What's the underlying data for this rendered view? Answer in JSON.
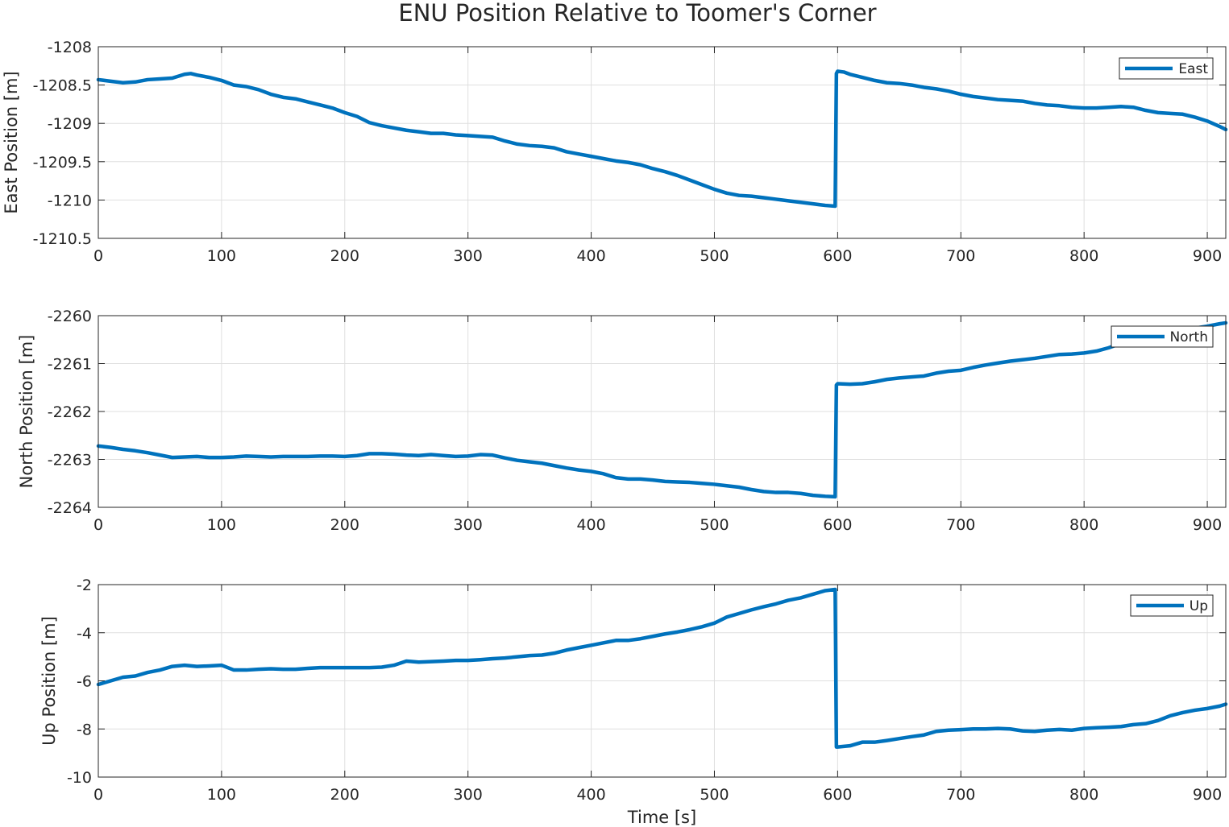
{
  "figure": {
    "title": "ENU Position Relative to Toomer's Corner",
    "background": "#ffffff",
    "line_color": "#0072bd",
    "grid_color": "#dfdfdf",
    "axis_color": "#262626"
  },
  "chart_data": [
    {
      "type": "line",
      "title": "ENU Position Relative to Toomer's Corner",
      "xlabel": "",
      "ylabel": "East Position [m]",
      "xlim": [
        0,
        915
      ],
      "ylim": [
        -1210.5,
        -1208
      ],
      "xticks": [
        0,
        100,
        200,
        300,
        400,
        500,
        600,
        700,
        800,
        900
      ],
      "xtick_labels": [
        "0",
        "100",
        "200",
        "300",
        "400",
        "500",
        "600",
        "700",
        "800",
        "900"
      ],
      "yticks": [
        -1210.5,
        -1210,
        -1209.5,
        -1209,
        -1208.5,
        -1208
      ],
      "ytick_labels": [
        "-1210.5",
        "-1210",
        "-1209.5",
        "-1209",
        "-1208.5",
        "-1208"
      ],
      "grid": true,
      "legend_position": "top-right",
      "series": [
        {
          "name": "East",
          "x": [
            0,
            10,
            20,
            30,
            40,
            50,
            60,
            70,
            75,
            80,
            90,
            100,
            110,
            120,
            130,
            140,
            150,
            160,
            170,
            180,
            190,
            200,
            210,
            220,
            230,
            240,
            250,
            260,
            270,
            280,
            290,
            300,
            310,
            320,
            330,
            340,
            350,
            360,
            370,
            380,
            390,
            400,
            410,
            420,
            430,
            440,
            450,
            460,
            470,
            480,
            490,
            500,
            510,
            520,
            530,
            540,
            550,
            560,
            570,
            580,
            590,
            598,
            599,
            600,
            605,
            610,
            620,
            630,
            640,
            650,
            660,
            670,
            680,
            690,
            700,
            710,
            720,
            730,
            740,
            750,
            760,
            770,
            780,
            790,
            800,
            810,
            820,
            830,
            840,
            850,
            860,
            870,
            880,
            890,
            900,
            910,
            915
          ],
          "values": [
            -1208.43,
            -1208.45,
            -1208.47,
            -1208.46,
            -1208.43,
            -1208.42,
            -1208.41,
            -1208.36,
            -1208.35,
            -1208.37,
            -1208.4,
            -1208.44,
            -1208.5,
            -1208.52,
            -1208.56,
            -1208.62,
            -1208.66,
            -1208.68,
            -1208.72,
            -1208.76,
            -1208.8,
            -1208.86,
            -1208.91,
            -1208.99,
            -1209.03,
            -1209.06,
            -1209.09,
            -1209.11,
            -1209.13,
            -1209.13,
            -1209.15,
            -1209.16,
            -1209.17,
            -1209.18,
            -1209.23,
            -1209.27,
            -1209.29,
            -1209.3,
            -1209.32,
            -1209.37,
            -1209.4,
            -1209.43,
            -1209.46,
            -1209.49,
            -1209.51,
            -1209.54,
            -1209.59,
            -1209.63,
            -1209.68,
            -1209.74,
            -1209.8,
            -1209.86,
            -1209.91,
            -1209.94,
            -1209.95,
            -1209.97,
            -1209.99,
            -1210.01,
            -1210.03,
            -1210.05,
            -1210.07,
            -1210.08,
            -1208.35,
            -1208.32,
            -1208.33,
            -1208.36,
            -1208.4,
            -1208.44,
            -1208.47,
            -1208.48,
            -1208.5,
            -1208.53,
            -1208.55,
            -1208.58,
            -1208.62,
            -1208.65,
            -1208.67,
            -1208.69,
            -1208.7,
            -1208.71,
            -1208.74,
            -1208.76,
            -1208.77,
            -1208.79,
            -1208.8,
            -1208.8,
            -1208.79,
            -1208.78,
            -1208.79,
            -1208.83,
            -1208.86,
            -1208.87,
            -1208.88,
            -1208.92,
            -1208.97,
            -1209.04,
            -1209.08
          ]
        }
      ]
    },
    {
      "type": "line",
      "xlabel": "",
      "ylabel": "North Position [m]",
      "xlim": [
        0,
        915
      ],
      "ylim": [
        -2264,
        -2260
      ],
      "xticks": [
        0,
        100,
        200,
        300,
        400,
        500,
        600,
        700,
        800,
        900
      ],
      "xtick_labels": [
        "0",
        "100",
        "200",
        "300",
        "400",
        "500",
        "600",
        "700",
        "800",
        "900"
      ],
      "yticks": [
        -2264,
        -2263,
        -2262,
        -2261,
        -2260
      ],
      "ytick_labels": [
        "-2264",
        "-2263",
        "-2262",
        "-2261",
        "-2260"
      ],
      "grid": true,
      "legend_position": "top-right",
      "series": [
        {
          "name": "North",
          "x": [
            0,
            10,
            20,
            30,
            40,
            50,
            60,
            70,
            80,
            90,
            100,
            110,
            120,
            130,
            140,
            150,
            160,
            170,
            180,
            190,
            200,
            210,
            220,
            230,
            240,
            250,
            260,
            270,
            280,
            290,
            300,
            310,
            320,
            330,
            340,
            350,
            360,
            370,
            380,
            390,
            400,
            410,
            420,
            430,
            440,
            450,
            460,
            470,
            480,
            490,
            500,
            510,
            520,
            530,
            540,
            550,
            560,
            570,
            580,
            590,
            598,
            599,
            600,
            610,
            620,
            630,
            640,
            650,
            660,
            670,
            680,
            690,
            700,
            710,
            720,
            730,
            740,
            750,
            760,
            770,
            780,
            790,
            800,
            810,
            820,
            830,
            840,
            850,
            860,
            870,
            880,
            890,
            900,
            910,
            915
          ],
          "values": [
            -2262.72,
            -2262.75,
            -2262.79,
            -2262.82,
            -2262.86,
            -2262.91,
            -2262.96,
            -2262.95,
            -2262.94,
            -2262.96,
            -2262.96,
            -2262.95,
            -2262.93,
            -2262.94,
            -2262.95,
            -2262.94,
            -2262.94,
            -2262.94,
            -2262.93,
            -2262.93,
            -2262.94,
            -2262.92,
            -2262.88,
            -2262.88,
            -2262.89,
            -2262.91,
            -2262.92,
            -2262.9,
            -2262.92,
            -2262.94,
            -2262.93,
            -2262.9,
            -2262.91,
            -2262.97,
            -2263.02,
            -2263.05,
            -2263.08,
            -2263.13,
            -2263.18,
            -2263.22,
            -2263.25,
            -2263.3,
            -2263.38,
            -2263.41,
            -2263.41,
            -2263.43,
            -2263.46,
            -2263.47,
            -2263.48,
            -2263.5,
            -2263.52,
            -2263.55,
            -2263.58,
            -2263.63,
            -2263.67,
            -2263.69,
            -2263.69,
            -2263.71,
            -2263.75,
            -2263.77,
            -2263.78,
            -2261.45,
            -2261.42,
            -2261.43,
            -2261.42,
            -2261.38,
            -2261.33,
            -2261.3,
            -2261.28,
            -2261.26,
            -2261.2,
            -2261.16,
            -2261.14,
            -2261.08,
            -2261.03,
            -2260.99,
            -2260.95,
            -2260.92,
            -2260.89,
            -2260.85,
            -2260.81,
            -2260.8,
            -2260.78,
            -2260.74,
            -2260.67,
            -2260.58,
            -2260.52,
            -2260.47,
            -2260.43,
            -2260.37,
            -2260.32,
            -2260.26,
            -2260.22,
            -2260.17,
            -2260.15
          ]
        }
      ]
    },
    {
      "type": "line",
      "xlabel": "Time [s]",
      "ylabel": "Up Position [m]",
      "xlim": [
        0,
        915
      ],
      "ylim": [
        -10,
        -2
      ],
      "xticks": [
        0,
        100,
        200,
        300,
        400,
        500,
        600,
        700,
        800,
        900
      ],
      "xtick_labels": [
        "0",
        "100",
        "200",
        "300",
        "400",
        "500",
        "600",
        "700",
        "800",
        "900"
      ],
      "yticks": [
        -10,
        -8,
        -6,
        -4,
        -2
      ],
      "ytick_labels": [
        "-10",
        "-8",
        "-6",
        "-4",
        "-2"
      ],
      "grid": true,
      "legend_position": "top-right",
      "series": [
        {
          "name": "Up",
          "x": [
            0,
            10,
            20,
            30,
            40,
            50,
            60,
            70,
            80,
            90,
            100,
            110,
            120,
            130,
            140,
            150,
            160,
            170,
            180,
            190,
            200,
            210,
            220,
            230,
            240,
            250,
            260,
            270,
            280,
            290,
            300,
            310,
            320,
            330,
            340,
            350,
            360,
            370,
            380,
            390,
            400,
            410,
            420,
            430,
            440,
            450,
            460,
            470,
            480,
            490,
            500,
            510,
            520,
            530,
            540,
            550,
            560,
            570,
            580,
            590,
            598,
            599,
            600,
            610,
            620,
            630,
            640,
            650,
            660,
            670,
            680,
            690,
            700,
            710,
            720,
            730,
            740,
            750,
            760,
            770,
            780,
            790,
            800,
            810,
            820,
            830,
            840,
            850,
            860,
            870,
            880,
            890,
            900,
            910,
            915
          ],
          "values": [
            -6.15,
            -6.0,
            -5.85,
            -5.8,
            -5.65,
            -5.55,
            -5.4,
            -5.35,
            -5.4,
            -5.38,
            -5.35,
            -5.55,
            -5.55,
            -5.52,
            -5.5,
            -5.52,
            -5.52,
            -5.48,
            -5.45,
            -5.45,
            -5.45,
            -5.45,
            -5.45,
            -5.43,
            -5.35,
            -5.18,
            -5.22,
            -5.2,
            -5.18,
            -5.15,
            -5.15,
            -5.12,
            -5.08,
            -5.05,
            -5.0,
            -4.95,
            -4.93,
            -4.85,
            -4.72,
            -4.62,
            -4.52,
            -4.42,
            -4.32,
            -4.32,
            -4.25,
            -4.15,
            -4.05,
            -3.97,
            -3.87,
            -3.75,
            -3.6,
            -3.35,
            -3.2,
            -3.05,
            -2.92,
            -2.8,
            -2.65,
            -2.55,
            -2.4,
            -2.25,
            -2.2,
            -8.75,
            -8.75,
            -8.7,
            -8.55,
            -8.55,
            -8.48,
            -8.4,
            -8.32,
            -8.25,
            -8.1,
            -8.05,
            -8.03,
            -8.0,
            -8.0,
            -7.98,
            -8.0,
            -8.08,
            -8.1,
            -8.05,
            -8.02,
            -8.05,
            -7.98,
            -7.95,
            -7.93,
            -7.9,
            -7.82,
            -7.78,
            -7.65,
            -7.45,
            -7.32,
            -7.22,
            -7.15,
            -7.05,
            -6.97
          ]
        }
      ]
    }
  ]
}
